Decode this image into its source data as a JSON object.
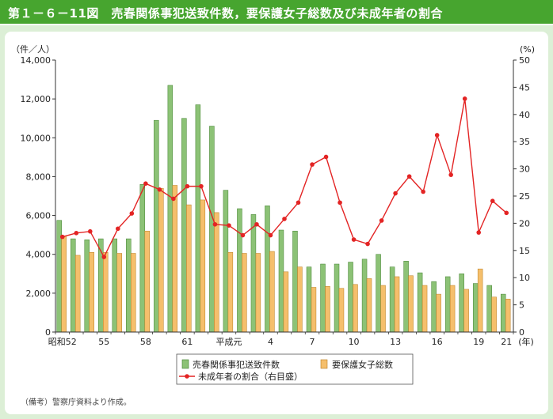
{
  "header": {
    "title": "第１－６－11図　売春関係事犯送致件数，要保護女子総数及び未成年者の割合"
  },
  "note": "（備考）警察庁資料より作成。",
  "chart_data": {
    "type": "bar",
    "left_unit": "（件／人）",
    "right_unit": "(%)",
    "year_suffix": "(年)",
    "ylim": [
      0,
      14000
    ],
    "yticks": [
      0,
      2000,
      4000,
      6000,
      8000,
      10000,
      12000,
      14000
    ],
    "ytick_labels": [
      "0",
      "2,000",
      "4,000",
      "6,000",
      "8,000",
      "10,000",
      "12,000",
      "14,000"
    ],
    "y2lim": [
      0,
      50
    ],
    "y2ticks": [
      0,
      5,
      10,
      15,
      20,
      25,
      30,
      35,
      40,
      45,
      50
    ],
    "categories": [
      "52",
      "53",
      "54",
      "55",
      "56",
      "57",
      "58",
      "59",
      "60",
      "61",
      "62",
      "63",
      "元",
      "2",
      "3",
      "4",
      "5",
      "6",
      "7",
      "8",
      "9",
      "10",
      "11",
      "12",
      "13",
      "14",
      "15",
      "16",
      "17",
      "18",
      "19",
      "20",
      "21"
    ],
    "xtick_labels": [
      {
        "index": 0,
        "label": "昭和52"
      },
      {
        "index": 3,
        "label": "55"
      },
      {
        "index": 6,
        "label": "58"
      },
      {
        "index": 9,
        "label": "61"
      },
      {
        "index": 12,
        "label": "平成元"
      },
      {
        "index": 15,
        "label": "4"
      },
      {
        "index": 18,
        "label": "7"
      },
      {
        "index": 21,
        "label": "10"
      },
      {
        "index": 24,
        "label": "13"
      },
      {
        "index": 27,
        "label": "16"
      },
      {
        "index": 30,
        "label": "19"
      },
      {
        "index": 32,
        "label": "21"
      }
    ],
    "series": [
      {
        "name": "売春関係事犯送致件数",
        "type": "bar",
        "axis": "left",
        "color": "#8cc276",
        "values": [
          5750,
          4800,
          4750,
          4800,
          4800,
          4800,
          7600,
          10900,
          12700,
          11000,
          11700,
          10600,
          7300,
          6350,
          6050,
          6500,
          5250,
          5200,
          3350,
          3500,
          3500,
          3600,
          3750,
          4000,
          3350,
          3650,
          3050,
          2600,
          2850,
          3000,
          2500,
          2400,
          1950
        ]
      },
      {
        "name": "要保護女子総数",
        "type": "bar",
        "axis": "left",
        "color": "#f5bf6c",
        "values": [
          4950,
          3950,
          4100,
          4100,
          4050,
          4050,
          5200,
          7400,
          7550,
          6550,
          6800,
          6150,
          4100,
          4050,
          4050,
          4150,
          3100,
          3350,
          2300,
          2350,
          2250,
          2450,
          2750,
          2400,
          2850,
          2900,
          2400,
          1950,
          2400,
          2200,
          3250,
          1800,
          1700
        ]
      },
      {
        "name": "未成年者の割合（右目盛）",
        "type": "line",
        "axis": "right",
        "color": "#e32424",
        "values": [
          17.5,
          18.2,
          18.5,
          13.8,
          19.0,
          21.8,
          27.3,
          26.2,
          24.5,
          26.8,
          26.8,
          19.8,
          19.6,
          17.8,
          19.8,
          17.8,
          20.8,
          23.8,
          30.8,
          32.2,
          23.8,
          17.0,
          16.2,
          20.5,
          25.5,
          28.6,
          25.8,
          36.2,
          28.9,
          42.9,
          18.3,
          24.1,
          21.9
        ]
      }
    ],
    "legend": {
      "placement": "bottom-center",
      "bar1": "売春関係事犯送致件数",
      "bar2": "要保護女子総数",
      "line": "未成年者の割合（右目盛）"
    },
    "grid": false
  }
}
